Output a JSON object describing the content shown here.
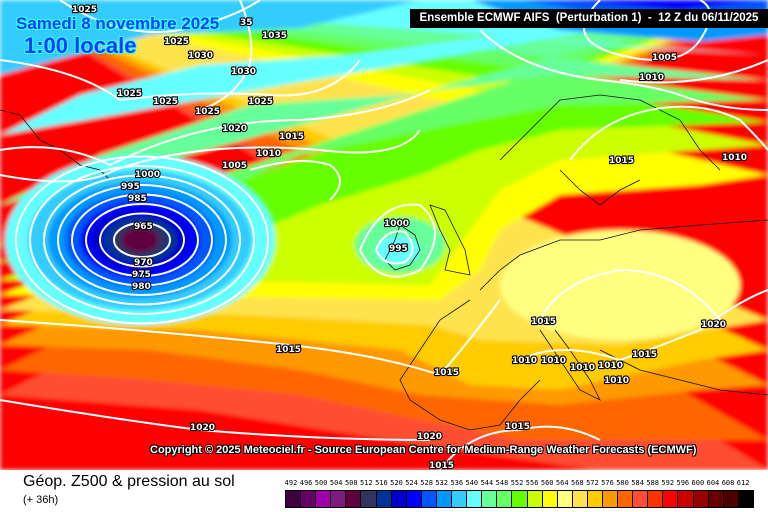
{
  "map": {
    "date_title": "Samedi 8 novembre 2025",
    "time_title": "1:00 locale",
    "header": "Ensemble ECMWF AIFS  (Perturbation 1)  -  12 Z du 06/11/2025",
    "copyright": "Copyright © 2025 Meteociel.fr - Source European Centre for Medium-Range Weather Forecasts (ECMWF)",
    "isobar_labels": [
      "1025",
      "35",
      "1025",
      "1030",
      "1035",
      "1030",
      "1025",
      "1025",
      "1025",
      "1025",
      "1020",
      "1015",
      "1010",
      "1005",
      "1000",
      "995",
      "985",
      "965",
      "970",
      "975",
      "980",
      "1000",
      "995",
      "1015",
      "1005",
      "1010",
      "1010",
      "1015",
      "1020",
      "1015",
      "1015",
      "1010",
      "1010",
      "1010",
      "1010",
      "1015",
      "1010",
      "1020",
      "1020",
      "1015",
      "1015"
    ]
  },
  "footer": {
    "title": "Géop. Z500 & pression au sol",
    "lead_time": "(+ 36h)"
  },
  "legend": {
    "labels": [
      "492",
      "496",
      "500",
      "504",
      "508",
      "512",
      "516",
      "520",
      "524",
      "528",
      "532",
      "536",
      "540",
      "544",
      "548",
      "552",
      "556",
      "560",
      "564",
      "568",
      "572",
      "576",
      "580",
      "584",
      "588",
      "592",
      "596",
      "600",
      "604",
      "608",
      "612"
    ],
    "colors": [
      "#3f003f",
      "#660066",
      "#a000a8",
      "#801a80",
      "#600040",
      "#33335f",
      "#003399",
      "#0000cc",
      "#0000ff",
      "#0055ff",
      "#0099ff",
      "#33ccff",
      "#66ffff",
      "#66ff99",
      "#66ff66",
      "#66ff00",
      "#ccff00",
      "#ffff00",
      "#ffff80",
      "#ffe34d",
      "#ffcc00",
      "#ff9900",
      "#ff6600",
      "#ff4d33",
      "#ff3300",
      "#ff0000",
      "#cc0000",
      "#990000",
      "#660000",
      "#4d0000",
      "#000000"
    ]
  }
}
